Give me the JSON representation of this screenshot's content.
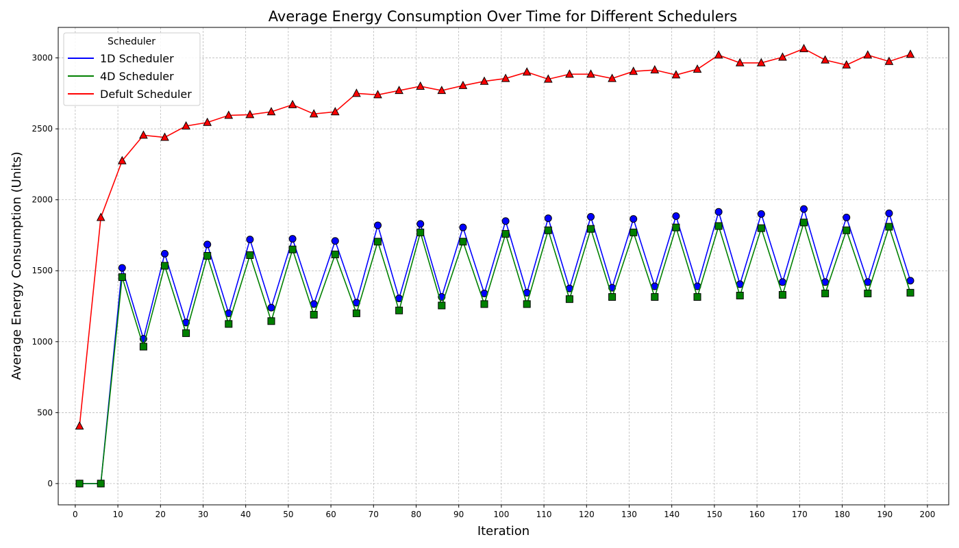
{
  "chart_data": {
    "type": "line",
    "title": "Average Energy Consumption Over Time for Different Schedulers",
    "xlabel": "Iteration",
    "ylabel": "Average Energy Consumption (Units)",
    "xlim": [
      -4,
      205
    ],
    "ylim": [
      -150,
      3215
    ],
    "xticks": [
      0,
      10,
      20,
      30,
      40,
      50,
      60,
      70,
      80,
      90,
      100,
      110,
      120,
      130,
      140,
      150,
      160,
      170,
      180,
      190,
      200
    ],
    "yticks": [
      0,
      500,
      1000,
      1500,
      2000,
      2500,
      3000
    ],
    "grid": true,
    "legend": {
      "title": "Scheduler",
      "placement": "top-left"
    },
    "x": [
      1,
      6,
      11,
      16,
      21,
      26,
      31,
      36,
      41,
      46,
      51,
      56,
      61,
      66,
      71,
      76,
      81,
      86,
      91,
      96,
      101,
      106,
      111,
      116,
      121,
      126,
      131,
      136,
      141,
      146,
      151,
      156,
      161,
      166,
      171,
      176,
      181,
      186,
      191,
      196
    ],
    "series": [
      {
        "name": "1D Scheduler",
        "color": "#0000ff",
        "marker": "circle",
        "values": [
          0,
          0,
          1520,
          1020,
          1620,
          1135,
          1685,
          1200,
          1720,
          1240,
          1725,
          1265,
          1710,
          1275,
          1820,
          1305,
          1830,
          1315,
          1805,
          1340,
          1850,
          1345,
          1870,
          1375,
          1880,
          1380,
          1865,
          1390,
          1885,
          1390,
          1915,
          1405,
          1900,
          1420,
          1935,
          1420,
          1875,
          1420,
          1905,
          1430
        ]
      },
      {
        "name": "4D Scheduler",
        "color": "#008000",
        "marker": "square",
        "values": [
          0,
          0,
          1455,
          965,
          1535,
          1060,
          1605,
          1125,
          1610,
          1145,
          1650,
          1190,
          1615,
          1200,
          1705,
          1220,
          1770,
          1255,
          1705,
          1265,
          1760,
          1265,
          1785,
          1300,
          1795,
          1315,
          1770,
          1315,
          1805,
          1315,
          1815,
          1325,
          1800,
          1330,
          1840,
          1340,
          1785,
          1340,
          1810,
          1345
        ]
      },
      {
        "name": "Defult Scheduler",
        "color": "#ff0000",
        "marker": "triangle",
        "values": [
          405,
          1875,
          2275,
          2455,
          2440,
          2520,
          2545,
          2595,
          2600,
          2620,
          2670,
          2605,
          2620,
          2750,
          2740,
          2770,
          2800,
          2770,
          2805,
          2835,
          2855,
          2900,
          2850,
          2885,
          2885,
          2855,
          2905,
          2915,
          2880,
          2920,
          3020,
          2965,
          2965,
          3005,
          3065,
          2985,
          2950,
          3020,
          2975,
          3025
        ]
      }
    ]
  }
}
